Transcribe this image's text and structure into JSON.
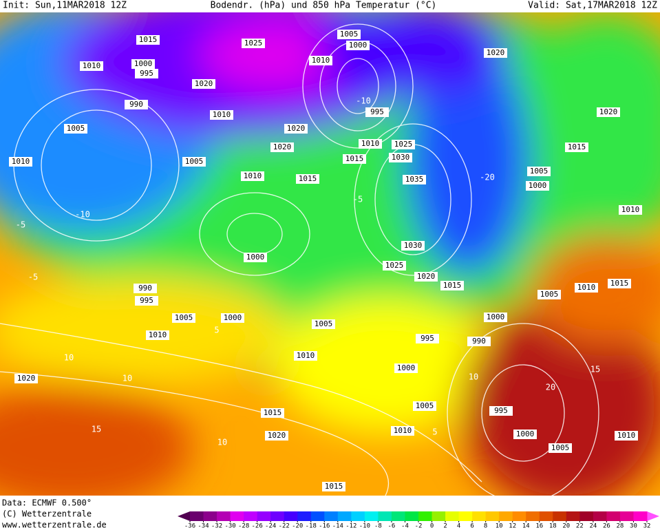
{
  "header": {
    "init": "Init: Sun,11MAR2018 12Z",
    "title": "Bodendr. (hPa) und 850 hPa Temperatur (°C)",
    "valid": "Valid: Sat,17MAR2018 12Z"
  },
  "footer": {
    "data": "Data: ECMWF  0.500°",
    "copyright": "(C) Wetterzentrale",
    "url": "www.wetterzentrale.de"
  },
  "colorbar": {
    "ticks": [
      -36,
      -34,
      -32,
      -30,
      -28,
      -26,
      -24,
      -22,
      -20,
      -18,
      -16,
      -14,
      -12,
      -10,
      -8,
      -6,
      -4,
      -2,
      0,
      2,
      4,
      6,
      8,
      10,
      12,
      14,
      16,
      18,
      20,
      22,
      24,
      26,
      28,
      30,
      32
    ],
    "below_color": "#500050",
    "above_color": "#ff50ff",
    "box_colors": [
      "#6a006e",
      "#8c008c",
      "#b400b4",
      "#e000f0",
      "#c000ff",
      "#9600ff",
      "#6e00ff",
      "#4600ff",
      "#1e1eff",
      "#0050ff",
      "#0080ff",
      "#00a8ff",
      "#00d0ff",
      "#00f0f0",
      "#00e6b4",
      "#00e678",
      "#00e646",
      "#32f000",
      "#96f000",
      "#e6ff00",
      "#ffff00",
      "#ffe000",
      "#ffc800",
      "#ffa800",
      "#ff8c00",
      "#f06e00",
      "#e05000",
      "#c83200",
      "#b41414",
      "#a00028",
      "#b40046",
      "#d2006e",
      "#e60096",
      "#ff00c8"
    ]
  },
  "isobar_labels": [
    "1015",
    "1025",
    "1005",
    "1000",
    "1010",
    "1020",
    "1010",
    "1000",
    "995",
    "1020",
    "990",
    "1010",
    "995",
    "1005",
    "1020",
    "1020",
    "1010",
    "1025",
    "1015",
    "1030",
    "1010",
    "1005",
    "1010",
    "1015",
    "1035",
    "1005",
    "1000",
    "1020",
    "1015",
    "1010",
    "1000",
    "1030",
    "1025",
    "1020",
    "1015",
    "990",
    "995",
    "1005",
    "1000",
    "1010",
    "1005",
    "1005",
    "1010",
    "1015",
    "1000",
    "995",
    "990",
    "1010",
    "1000",
    "1020",
    "1005",
    "1015",
    "1010",
    "1020",
    "995",
    "1000",
    "1005",
    "1010",
    "1015"
  ],
  "temperature_labels": [
    "-10",
    "-5",
    "-5",
    "5",
    "10",
    "10",
    "15",
    "10",
    "5",
    "10",
    "15",
    "20",
    "-5",
    "-10",
    "-20"
  ]
}
